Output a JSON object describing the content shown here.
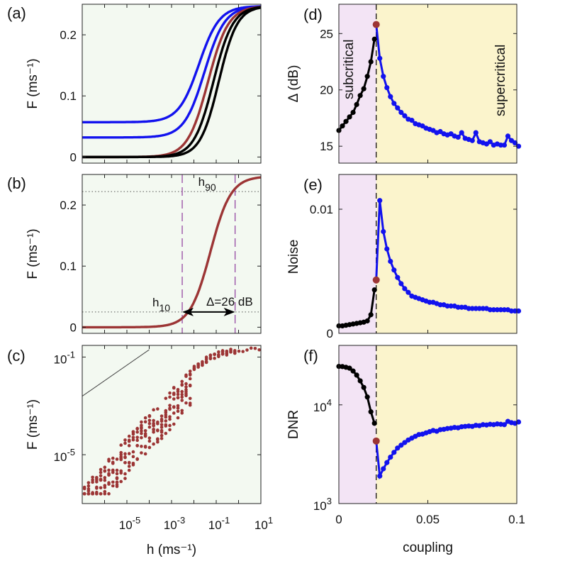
{
  "figure": {
    "x_label_left": "h (ms⁻¹)",
    "x_label_right": "coupling"
  },
  "colors": {
    "panel_bg_green": "#f3f9f1",
    "subcritical_bg": "#f3e4f5",
    "supercritical_bg": "#fbf4cc",
    "blue": "#1212ee",
    "red": "#9c3535",
    "black": "#000000",
    "purple_dash": "#8e3a9c",
    "grid_dot": "#555555"
  },
  "chart_data": [
    {
      "id": "a",
      "panel_label": "(a)",
      "type": "line",
      "xscale": "log",
      "xlim": [
        1e-07,
        10
      ],
      "ylim": [
        -0.01,
        0.25
      ],
      "ylabel": "F (ms⁻¹)",
      "yticks": [
        0,
        0.1,
        0.2
      ],
      "ytick_labels": [
        "0",
        "0.1",
        "0.2"
      ],
      "x_tick_labels_shown": false,
      "series": [
        {
          "name": "curve-blue-high",
          "color": "blue",
          "F0": 0.057,
          "Fmax": 0.247,
          "h50": 0.017,
          "n": 0.95
        },
        {
          "name": "curve-blue-low",
          "color": "blue",
          "F0": 0.032,
          "Fmax": 0.247,
          "h50": 0.03,
          "n": 0.95
        },
        {
          "name": "curve-red",
          "color": "red",
          "F0": 0.0,
          "Fmax": 0.247,
          "h50": 0.043,
          "n": 0.95
        },
        {
          "name": "curve-black-1",
          "color": "black",
          "F0": 0.0,
          "Fmax": 0.247,
          "h50": 0.075,
          "n": 1.0
        },
        {
          "name": "curve-black-2",
          "color": "black",
          "F0": 0.0,
          "Fmax": 0.247,
          "h50": 0.13,
          "n": 1.05
        }
      ]
    },
    {
      "id": "b",
      "panel_label": "(b)",
      "type": "line",
      "xscale": "log",
      "xlim": [
        1e-07,
        10
      ],
      "ylim": [
        -0.01,
        0.25
      ],
      "ylabel": "F (ms⁻¹)",
      "yticks": [
        0,
        0.1,
        0.2
      ],
      "ytick_labels": [
        "0",
        "0.1",
        "0.2"
      ],
      "x_tick_labels_shown": false,
      "series": [
        {
          "name": "response-curve",
          "color": "red",
          "F0": 0.0,
          "Fmax": 0.247,
          "h50": 0.055,
          "n": 0.95
        }
      ],
      "h10": 0.003,
      "h90": 0.7,
      "F10": 0.025,
      "F90": 0.222,
      "annotations": {
        "h10_label": "h",
        "h10_sub": "10",
        "h90_label": "h",
        "h90_sub": "90",
        "delta_label": "Δ=26 dB"
      }
    },
    {
      "id": "c",
      "panel_label": "(c)",
      "type": "scatter",
      "xscale": "log",
      "yscale": "log",
      "xlim": [
        1e-07,
        10
      ],
      "ylim": [
        1e-07,
        0.3
      ],
      "ylabel": "F (ms⁻¹)",
      "yticks": [
        1e-05,
        0.1
      ],
      "ytick_base": [
        "10",
        "10"
      ],
      "ytick_exp": [
        "-5",
        "-1"
      ],
      "xticks": [
        1e-05,
        0.001,
        0.1,
        10
      ],
      "xtick_base": [
        "10",
        "10",
        "10",
        "10"
      ],
      "xtick_exp": [
        "-5",
        "-3",
        "-1",
        "1"
      ],
      "xlabel": "h (ms⁻¹)",
      "reference_line": {
        "x": [
          1e-07,
          0.0001
        ],
        "y": [
          0.0025,
          0.2
        ]
      },
      "point_color": "red"
    },
    {
      "id": "d",
      "panel_label": "(d)",
      "type": "line",
      "xlim": [
        0,
        0.1
      ],
      "ylim": [
        13.5,
        27.6
      ],
      "ylabel": "Δ (dB)",
      "yticks": [
        15,
        20,
        25
      ],
      "ytick_labels": [
        "15",
        "20",
        "25"
      ],
      "critical_x": 0.021,
      "region_labels": {
        "left": "subcritical",
        "right": "supercritical"
      },
      "sub_x": [
        0.0,
        0.002,
        0.004,
        0.006,
        0.008,
        0.01,
        0.012,
        0.014,
        0.016,
        0.018,
        0.02
      ],
      "sub_y": [
        16.4,
        16.8,
        17.2,
        17.6,
        18.0,
        18.7,
        19.5,
        20.1,
        21.2,
        22.5,
        24.5
      ],
      "critical_point": [
        0.021,
        25.8
      ],
      "super_x": [
        0.021,
        0.023,
        0.025,
        0.027,
        0.029,
        0.031,
        0.033,
        0.035,
        0.037,
        0.039,
        0.041,
        0.043,
        0.045,
        0.047,
        0.049,
        0.051,
        0.053,
        0.055,
        0.057,
        0.059,
        0.061,
        0.063,
        0.065,
        0.067,
        0.069,
        0.071,
        0.073,
        0.075,
        0.077,
        0.079,
        0.081,
        0.083,
        0.085,
        0.087,
        0.089,
        0.091,
        0.093,
        0.095,
        0.097,
        0.099,
        0.101
      ],
      "super_y": [
        25.8,
        22.8,
        21.2,
        20.2,
        19.4,
        18.8,
        18.4,
        18.0,
        17.7,
        17.4,
        17.3,
        17.0,
        16.9,
        16.8,
        16.6,
        16.5,
        16.4,
        16.2,
        16.3,
        16.1,
        16.0,
        16.1,
        15.9,
        15.8,
        16.2,
        15.7,
        15.6,
        15.5,
        16.2,
        15.4,
        15.3,
        15.2,
        15.4,
        15.1,
        15.2,
        15.1,
        15.1,
        15.9,
        15.5,
        15.3,
        15.0
      ]
    },
    {
      "id": "e",
      "panel_label": "(e)",
      "type": "line",
      "xlim": [
        0,
        0.1
      ],
      "ylim": [
        0,
        0.0128
      ],
      "ylabel": "Noise",
      "yticks": [
        0,
        0.01
      ],
      "ytick_labels": [
        "0",
        "0.01"
      ],
      "critical_x": 0.021,
      "sub_x": [
        0.0,
        0.002,
        0.004,
        0.006,
        0.008,
        0.01,
        0.012,
        0.014,
        0.016,
        0.018,
        0.02
      ],
      "sub_y": [
        0.0006,
        0.0006,
        0.00065,
        0.0007,
        0.00075,
        0.0008,
        0.00085,
        0.0009,
        0.001,
        0.0015,
        0.0035
      ],
      "critical_point": [
        0.021,
        0.0043
      ],
      "super_x": [
        0.021,
        0.023,
        0.025,
        0.027,
        0.029,
        0.031,
        0.033,
        0.035,
        0.037,
        0.039,
        0.041,
        0.043,
        0.045,
        0.047,
        0.049,
        0.051,
        0.053,
        0.055,
        0.057,
        0.059,
        0.061,
        0.063,
        0.065,
        0.067,
        0.069,
        0.071,
        0.073,
        0.075,
        0.077,
        0.079,
        0.081,
        0.083,
        0.085,
        0.087,
        0.089,
        0.091,
        0.093,
        0.095,
        0.097,
        0.099,
        0.101
      ],
      "super_y": [
        0.0043,
        0.0107,
        0.0082,
        0.0068,
        0.0058,
        0.0051,
        0.0045,
        0.004,
        0.0036,
        0.0033,
        0.003,
        0.0029,
        0.0028,
        0.0027,
        0.0026,
        0.0025,
        0.0025,
        0.0024,
        0.0023,
        0.0023,
        0.0022,
        0.0022,
        0.0022,
        0.0021,
        0.0021,
        0.0021,
        0.002,
        0.002,
        0.002,
        0.002,
        0.002,
        0.002,
        0.0019,
        0.0019,
        0.0019,
        0.0019,
        0.0019,
        0.0019,
        0.0018,
        0.0018,
        0.0018
      ]
    },
    {
      "id": "f",
      "panel_label": "(f)",
      "type": "line",
      "xlim": [
        0,
        0.1
      ],
      "yscale": "log",
      "ylim": [
        1000,
        40000
      ],
      "ylabel": "DNR",
      "yticks": [
        1000,
        10000
      ],
      "ytick_base": [
        "10",
        "10"
      ],
      "ytick_exp": [
        "3",
        "4"
      ],
      "xticks": [
        0,
        0.05,
        0.1
      ],
      "xtick_labels": [
        "0",
        "0.05",
        "0.1"
      ],
      "xlabel": "coupling",
      "critical_x": 0.021,
      "sub_x": [
        0.0,
        0.002,
        0.004,
        0.006,
        0.008,
        0.01,
        0.012,
        0.014,
        0.016,
        0.018,
        0.02
      ],
      "sub_y": [
        24500,
        24400,
        24000,
        23500,
        22000,
        20000,
        17500,
        15000,
        12000,
        8500,
        6500
      ],
      "critical_point": [
        0.021,
        4300
      ],
      "super_x": [
        0.021,
        0.023,
        0.025,
        0.027,
        0.029,
        0.031,
        0.033,
        0.035,
        0.037,
        0.039,
        0.041,
        0.043,
        0.045,
        0.047,
        0.049,
        0.051,
        0.053,
        0.055,
        0.057,
        0.059,
        0.061,
        0.063,
        0.065,
        0.067,
        0.069,
        0.071,
        0.073,
        0.075,
        0.077,
        0.079,
        0.081,
        0.083,
        0.085,
        0.087,
        0.089,
        0.091,
        0.093,
        0.095,
        0.097,
        0.099,
        0.101
      ],
      "super_y": [
        4300,
        1900,
        2250,
        2600,
        2950,
        3300,
        3650,
        3900,
        4150,
        4400,
        4600,
        4800,
        5000,
        5050,
        5200,
        5350,
        5500,
        5400,
        5600,
        5650,
        5750,
        5800,
        5900,
        5850,
        6000,
        6050,
        6100,
        6050,
        6200,
        6150,
        6300,
        6250,
        6350,
        6300,
        6400,
        6350,
        6300,
        6800,
        6600,
        6500,
        6700
      ]
    }
  ]
}
